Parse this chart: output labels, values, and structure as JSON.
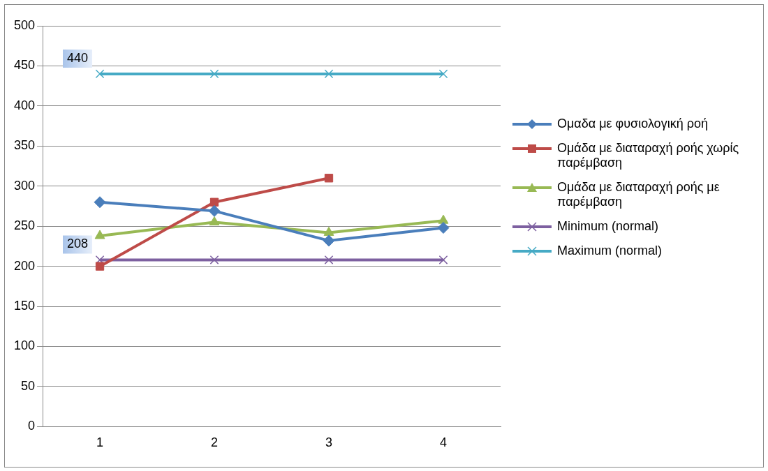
{
  "chart_data": {
    "type": "line",
    "categories": [
      "1",
      "2",
      "3",
      "4"
    ],
    "series": [
      {
        "name": "Ομαδα με φυσιολογική ροή",
        "color": "#4a7ebb",
        "values": [
          280,
          269,
          232,
          248
        ],
        "marker": "diamond"
      },
      {
        "name": "Ομάδα με διαταραχή ροής χωρίς παρέμβαση",
        "color": "#be4b48",
        "values": [
          200,
          280,
          310,
          null
        ],
        "marker": "square"
      },
      {
        "name": "Ομάδα με διαταραχή ροής με παρέμβαση",
        "color": "#98b954",
        "values": [
          238,
          255,
          242,
          257
        ],
        "marker": "triangle"
      },
      {
        "name": "Minimum (normal)",
        "color": "#7d60a0",
        "values": [
          208,
          208,
          208,
          208
        ],
        "marker": "cross",
        "value_labels": [
          "208",
          null,
          null,
          null
        ]
      },
      {
        "name": "Maximum (normal)",
        "color": "#46aac5",
        "values": [
          440,
          440,
          440,
          440
        ],
        "marker": "cross",
        "value_labels": [
          "440",
          null,
          null,
          null
        ]
      }
    ],
    "ylim": [
      0,
      500
    ],
    "yticks": [
      0,
      50,
      100,
      150,
      200,
      250,
      300,
      350,
      400,
      450,
      500
    ],
    "grid": "y",
    "legend": "right"
  }
}
